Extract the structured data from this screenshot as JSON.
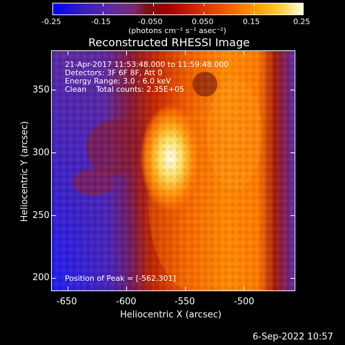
{
  "colorbar": {
    "ticks": [
      "-0.25",
      "-0.15",
      "-0.050",
      "0.050",
      "0.15",
      "0.25"
    ],
    "units": "(photons cm⁻² s⁻¹ asec⁻²)"
  },
  "title": "Reconstructed RHESSI Image",
  "info": {
    "line1": "21-Apr-2017 11:53:48.000 to 11:59:48.000",
    "line2": "Detectors: 3F 6F 8F, Att 0",
    "line3": "Energy Range: 3.0 - 6.0 keV",
    "line4": "Clean    Total counts: 2.35E+05",
    "peak": "Position of Peak = [-562,301]"
  },
  "x_axis": {
    "title": "Heliocentric X (arcsec)",
    "ticks": [
      "-650",
      "-600",
      "-550",
      "-500"
    ]
  },
  "y_axis": {
    "title": "Heliocentric Y (arcsec)",
    "ticks": [
      "200",
      "250",
      "300",
      "350"
    ]
  },
  "timestamp": "6-Sep-2022 10:57"
}
